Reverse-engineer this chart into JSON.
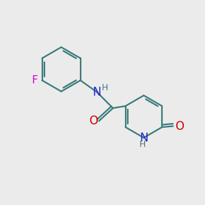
{
  "background_color": "#ebebeb",
  "bond_color": "#3a7a7a",
  "bond_width": 1.6,
  "atom_colors": {
    "N": "#2222cc",
    "O": "#cc0000",
    "F": "#cc00cc",
    "C": "#3a7a7a",
    "H": "#3a7a7a"
  },
  "font_size": 11,
  "fig_size": [
    3.0,
    3.0
  ],
  "dpi": 100,
  "xlim": [
    0,
    10
  ],
  "ylim": [
    0,
    10
  ]
}
